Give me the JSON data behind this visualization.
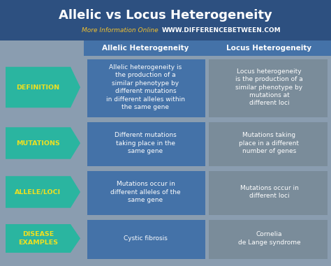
{
  "title": "Allelic vs Locus Heterogeneity",
  "subtitle_plain": "More Information Online",
  "subtitle_url": "WWW.DIFFERENCEBETWEEN.COM",
  "bg_color": "#8a9db0",
  "header_bg": "#4472a8",
  "title_bg": "#2d5080",
  "arrow_color": "#2ab5a0",
  "col1_color": "#4472a8",
  "col2_color": "#7a8c9a",
  "col_header1": "Allelic Heterogeneity",
  "col_header2": "Locus Heterogeneity",
  "rows": [
    {
      "label": "DEFINITION",
      "col1": "Allelic heterogeneity is\nthe production of a\nsimilar phenotype by\ndifferent mutations\nin different alleles within\nthe same gene",
      "col2": "Locus heterogeneity\nis the production of a\nsimilar phenotype by\nmutations at\ndifferent loci"
    },
    {
      "label": "MUTATIONS",
      "col1": "Different mutations\ntaking place in the\nsame gene",
      "col2": "Mutations taking\nplace in a different\nnumber of genes"
    },
    {
      "label": "ALLELE/LOCI",
      "col1": "Mutations occur in\ndifferent alleles of the\nsame gene",
      "col2": "Mutations occur in\ndifferent loci"
    },
    {
      "label": "DISEASE\nEXAMPLES",
      "col1": "Cystic fibrosis",
      "col2": "Cornelia\nde Lange syndrome"
    }
  ]
}
